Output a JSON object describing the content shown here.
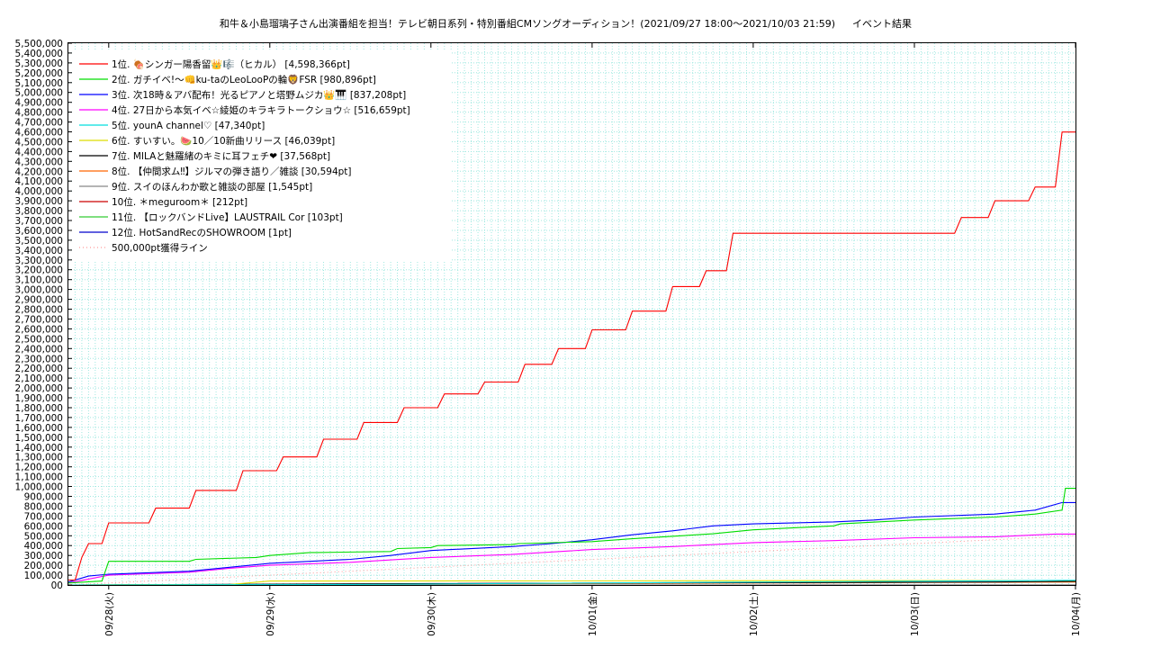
{
  "chart_data": {
    "type": "line",
    "title": "和牛＆小島瑠璃子さん出演番組を担当！テレビ朝日系列・特別番組CMソングオーディション！(2021/09/27 18:00〜2021/10/03 21:59)",
    "subtitle": "イベント結果",
    "xlabel": "",
    "ylabel": "",
    "x_range": [
      "2021-09-27 18:00",
      "2021-10-04 00:00"
    ],
    "x_ticks": [
      "2021-09-28 00:00",
      "2021-09-29 00:00",
      "2021-09-30 00:00",
      "2021-10-01 00:00",
      "2021-10-02 00:00",
      "2021-10-03 00:00",
      "2021-10-04 00:00"
    ],
    "x_tick_labels": [
      "09/28(火)",
      "09/29(水)",
      "09/30(木)",
      "10/01(金)",
      "10/02(土)",
      "10/03(日)",
      "10/04(月)"
    ],
    "ylim": [
      0,
      5500000
    ],
    "y_tick_labels": [
      "00",
      "100,000",
      "200,000",
      "300,000",
      "400,000",
      "500,000",
      "600,000",
      "700,000",
      "800,000",
      "900,000",
      "1,000,000",
      "1,100,000",
      "1,200,000",
      "1,300,000",
      "1,400,000",
      "1,500,000",
      "1,600,000",
      "1,700,000",
      "1,800,000",
      "1,900,000",
      "2,000,000",
      "2,100,000",
      "2,200,000",
      "2,300,000",
      "2,400,000",
      "2,500,000",
      "2,600,000",
      "2,700,000",
      "2,800,000",
      "2,900,000",
      "3,000,000",
      "3,100,000",
      "3,200,000",
      "3,300,000",
      "3,400,000",
      "3,500,000",
      "3,600,000",
      "3,700,000",
      "3,800,000",
      "3,900,000",
      "4,000,000",
      "4,100,000",
      "4,200,000",
      "4,300,000",
      "4,400,000",
      "4,500,000",
      "4,600,000",
      "4,700,000",
      "4,800,000",
      "4,900,000",
      "5,000,000",
      "5,100,000",
      "5,200,000",
      "5,300,000",
      "5,400,000",
      "5,500,000"
    ],
    "grid": true,
    "legend_position": "top-left",
    "series": [
      {
        "name": " 1位. 🍖シンガー陽香留👑🎼（ヒカル） [4,598,366pt]",
        "color": "#ff0000",
        "x": [
          "2021-09-27 18:00",
          "2021-09-27 19:00",
          "2021-09-27 20:00",
          "2021-09-27 21:00",
          "2021-09-27 23:00",
          "2021-09-28 00:00",
          "2021-09-28 06:00",
          "2021-09-28 07:00",
          "2021-09-28 12:00",
          "2021-09-28 13:00",
          "2021-09-28 19:00",
          "2021-09-28 20:00",
          "2021-09-29 01:00",
          "2021-09-29 02:00",
          "2021-09-29 07:00",
          "2021-09-29 08:00",
          "2021-09-29 13:00",
          "2021-09-29 14:00",
          "2021-09-29 19:00",
          "2021-09-29 20:00",
          "2021-09-30 01:00",
          "2021-09-30 02:00",
          "2021-09-30 07:00",
          "2021-09-30 08:00",
          "2021-09-30 13:00",
          "2021-09-30 14:00",
          "2021-09-30 18:00",
          "2021-09-30 19:00",
          "2021-09-30 23:00",
          "2021-10-01 00:00",
          "2021-10-01 05:00",
          "2021-10-01 06:00",
          "2021-10-01 11:00",
          "2021-10-01 12:00",
          "2021-10-01 16:00",
          "2021-10-01 17:00",
          "2021-10-01 20:00",
          "2021-10-01 21:00",
          "2021-10-02 02:00",
          "2021-10-02 03:00",
          "2021-10-02 08:00",
          "2021-10-02 09:00",
          "2021-10-02 12:00",
          "2021-10-02 13:00",
          "2021-10-03 06:00",
          "2021-10-03 07:00",
          "2021-10-03 11:00",
          "2021-10-03 12:00",
          "2021-10-03 17:00",
          "2021-10-03 18:00",
          "2021-10-03 21:00",
          "2021-10-03 22:00",
          "2021-10-04 00:00"
        ],
        "y": [
          50000,
          50000,
          280000,
          420000,
          420000,
          630000,
          630000,
          780000,
          780000,
          960000,
          960000,
          1160000,
          1160000,
          1300000,
          1300000,
          1480000,
          1480000,
          1650000,
          1650000,
          1800000,
          1800000,
          1940000,
          1940000,
          2060000,
          2060000,
          2240000,
          2240000,
          2400000,
          2400000,
          2590000,
          2590000,
          2780000,
          2780000,
          3030000,
          3030000,
          3190000,
          3190000,
          3570000,
          3570000,
          3570000,
          3570000,
          3570000,
          3570000,
          3570000,
          3570000,
          3730000,
          3730000,
          3900000,
          3900000,
          4040000,
          4040000,
          4598366,
          4598366
        ]
      },
      {
        "name": " 2位. ガチイベ!〜👊ku-taのLeoLooPの輪🦁FSR [980,896pt]",
        "color": "#00dd00",
        "x": [
          "2021-09-27 18:00",
          "2021-09-27 23:00",
          "2021-09-28 00:00",
          "2021-09-28 12:00",
          "2021-09-28 13:00",
          "2021-09-28 22:00",
          "2021-09-29 00:00",
          "2021-09-29 06:00",
          "2021-09-29 07:00",
          "2021-09-29 18:00",
          "2021-09-29 19:00",
          "2021-09-30 00:00",
          "2021-09-30 01:00",
          "2021-09-30 12:00",
          "2021-09-30 13:00",
          "2021-10-01 00:00",
          "2021-10-01 06:00",
          "2021-10-01 18:00",
          "2021-10-02 00:00",
          "2021-10-02 12:00",
          "2021-10-02 13:00",
          "2021-10-03 00:00",
          "2021-10-03 12:00",
          "2021-10-03 18:00",
          "2021-10-03 22:00",
          "2021-10-03 22:30",
          "2021-10-04 00:00"
        ],
        "y": [
          20000,
          40000,
          240000,
          240000,
          260000,
          280000,
          300000,
          330000,
          330000,
          340000,
          370000,
          380000,
          400000,
          410000,
          420000,
          440000,
          470000,
          520000,
          560000,
          600000,
          620000,
          660000,
          690000,
          720000,
          760000,
          980896,
          980896
        ]
      },
      {
        "name": " 3位. 次18時＆アバ配布！光るピアノと塔野ムジカ👑🎹 [837,208pt]",
        "color": "#0000ff",
        "x": [
          "2021-09-27 18:00",
          "2021-09-27 21:00",
          "2021-09-28 00:00",
          "2021-09-28 12:00",
          "2021-09-28 18:00",
          "2021-09-29 00:00",
          "2021-09-29 12:00",
          "2021-09-29 18:00",
          "2021-09-30 00:00",
          "2021-09-30 12:00",
          "2021-09-30 18:00",
          "2021-10-01 00:00",
          "2021-10-01 06:00",
          "2021-10-01 12:00",
          "2021-10-01 18:00",
          "2021-10-02 00:00",
          "2021-10-02 12:00",
          "2021-10-02 18:00",
          "2021-10-03 00:00",
          "2021-10-03 12:00",
          "2021-10-03 18:00",
          "2021-10-03 22:00",
          "2021-10-04 00:00"
        ],
        "y": [
          30000,
          90000,
          110000,
          140000,
          180000,
          220000,
          260000,
          300000,
          350000,
          390000,
          420000,
          460000,
          510000,
          550000,
          600000,
          620000,
          640000,
          660000,
          690000,
          720000,
          760000,
          837208,
          837208
        ]
      },
      {
        "name": " 4位. 27日から本気イベ☆綾姫のキラキラトークショウ☆ [516,659pt]",
        "color": "#ff00ff",
        "x": [
          "2021-09-27 18:00",
          "2021-09-28 00:00",
          "2021-09-28 12:00",
          "2021-09-28 18:00",
          "2021-09-29 00:00",
          "2021-09-29 12:00",
          "2021-09-30 00:00",
          "2021-09-30 12:00",
          "2021-10-01 00:00",
          "2021-10-01 12:00",
          "2021-10-02 00:00",
          "2021-10-02 12:00",
          "2021-10-03 00:00",
          "2021-10-03 12:00",
          "2021-10-03 21:00",
          "2021-10-04 00:00"
        ],
        "y": [
          20000,
          100000,
          130000,
          170000,
          200000,
          230000,
          280000,
          310000,
          360000,
          390000,
          430000,
          450000,
          480000,
          490000,
          516659,
          516659
        ]
      },
      {
        "name": " 5位. younA channel♡ [47,340pt]",
        "color": "#00dddd",
        "x": [
          "2021-09-27 18:00",
          "2021-09-29 12:00",
          "2021-10-01 00:00",
          "2021-10-04 00:00"
        ],
        "y": [
          0,
          5000,
          20000,
          47340
        ]
      },
      {
        "name": " 6位. すいすい。🍉10／10新曲リリース [46,039pt]",
        "color": "#dddd00",
        "x": [
          "2021-09-27 18:00",
          "2021-09-28 18:00",
          "2021-09-29 00:00",
          "2021-10-04 00:00"
        ],
        "y": [
          0,
          5000,
          40000,
          46039
        ]
      },
      {
        "name": " 7位. MILAと魅羅緒のキミに耳フェチ❤ [37,568pt]",
        "color": "#000000",
        "x": [
          "2021-09-27 18:00",
          "2021-09-30 00:00",
          "2021-10-03 12:00",
          "2021-10-04 00:00"
        ],
        "y": [
          0,
          15000,
          30000,
          37568
        ]
      },
      {
        "name": " 8位. 【仲間求ム‼】ジルマの弾き語り／雑談 [30,594pt]",
        "color": "#ff6600",
        "x": [
          "2021-09-27 18:00",
          "2021-09-30 00:00",
          "2021-10-04 00:00"
        ],
        "y": [
          0,
          10000,
          30594
        ]
      },
      {
        "name": " 9位. スイのほんわか歌と雑談の部屋 [1,545pt]",
        "color": "#888888",
        "x": [
          "2021-09-27 18:00",
          "2021-10-04 00:00"
        ],
        "y": [
          0,
          1545
        ]
      },
      {
        "name": "10位. ＊meguroom＊ [212pt]",
        "color": "#cc0000",
        "x": [
          "2021-09-27 18:00",
          "2021-10-04 00:00"
        ],
        "y": [
          0,
          212
        ]
      },
      {
        "name": "11位. 【ロックバンドLive】LAUSTRAIL Cor [103pt]",
        "color": "#33cc33",
        "x": [
          "2021-09-27 18:00",
          "2021-10-04 00:00"
        ],
        "y": [
          0,
          103
        ]
      },
      {
        "name": "12位. HotSandRecのSHOWROOM [1pt]",
        "color": "#0000cc",
        "x": [
          "2021-09-27 18:00",
          "2021-10-04 00:00"
        ],
        "y": [
          0,
          1
        ]
      },
      {
        "name": "500,000pt獲得ライン",
        "color": "#ff9999",
        "dotted": true,
        "x": [
          "2021-09-27 18:00",
          "2021-10-04 00:00"
        ],
        "y": [
          0,
          500000
        ]
      }
    ]
  }
}
